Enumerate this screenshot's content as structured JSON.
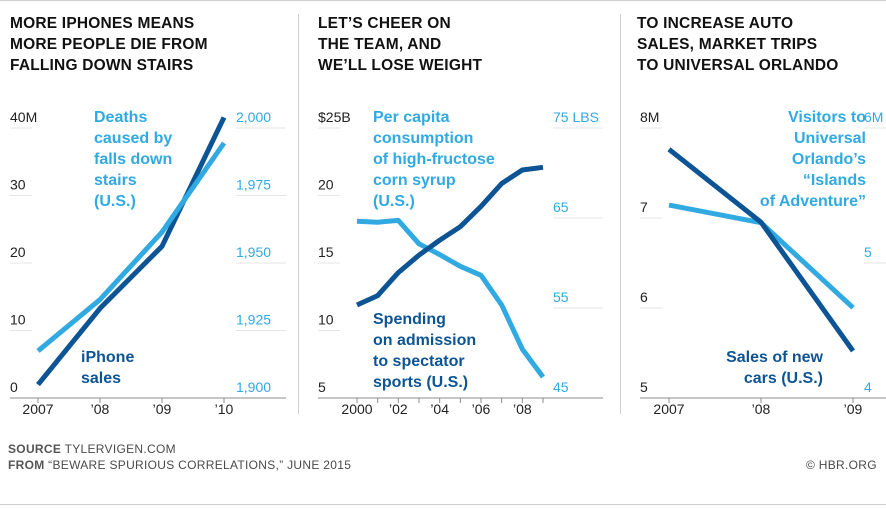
{
  "colors": {
    "dark": "#0d5495",
    "light": "#31a9e1",
    "axis": "#8c8c8c",
    "grid": "#e4e4e4",
    "text": "#1a1a1a"
  },
  "footer": {
    "source_label": "SOURCE",
    "source_value": "TYLERVIGEN.COM",
    "from_label": "FROM",
    "from_value": "“BEWARE SPURIOUS CORRELATIONS,” JUNE 2015",
    "copyright": "© HBR.ORG"
  },
  "chart_data": [
    {
      "type": "line",
      "title": "MORE IPHONES MEANS\nMORE PEOPLE DIE FROM\nFALLING DOWN STAIRS",
      "x_labels": [
        "2007",
        "’08",
        "’09",
        "’10"
      ],
      "x_range": [
        2007,
        2010
      ],
      "left_axis": {
        "ticks": [
          "40M",
          "30",
          "20",
          "10",
          "0"
        ],
        "values": [
          40,
          30,
          20,
          10,
          0
        ],
        "range": [
          0,
          40
        ]
      },
      "right_axis": {
        "ticks": [
          "2,000",
          "1,975",
          "1,950",
          "1,925",
          "1,900"
        ],
        "values": [
          2000,
          1975,
          1950,
          1925,
          1900
        ],
        "range": [
          1900,
          2000
        ]
      },
      "series": [
        {
          "name": "iPhone\nsales",
          "color": "dark",
          "axis": "left",
          "label_anchor": "start",
          "x": [
            2007,
            2008,
            2009,
            2010
          ],
          "values": [
            0.2,
            11.5,
            20.7,
            39.8
          ]
        },
        {
          "name": "Deaths\ncaused by\nfalls down\nstairs\n(U.S.)",
          "color": "light",
          "axis": "right",
          "label_anchor": "start",
          "x": [
            2007,
            2008,
            2009,
            2010
          ],
          "values": [
            1913,
            1932,
            1957,
            1990
          ]
        }
      ]
    },
    {
      "type": "line",
      "title": "LET’S CHEER ON\nTHE TEAM, AND\nWE’LL LOSE WEIGHT",
      "x_labels": [
        "2000",
        "",
        "’02",
        "",
        "’04",
        "",
        "’06",
        "",
        "’08",
        ""
      ],
      "x_range": [
        2000,
        2009
      ],
      "left_axis": {
        "ticks": [
          "$25B",
          "20",
          "15",
          "10",
          "5"
        ],
        "values": [
          25,
          20,
          15,
          10,
          5
        ],
        "range": [
          5,
          25
        ]
      },
      "right_axis": {
        "ticks": [
          "75 LBS",
          "65",
          "55",
          "45"
        ],
        "values": [
          75,
          65,
          55,
          45
        ],
        "range": [
          45,
          75
        ]
      },
      "series": [
        {
          "name": "Per capita\nconsumption\nof high-fructose\ncorn syrup\n(U.S.)",
          "color": "light",
          "axis": "right",
          "label_anchor": "start",
          "x": [
            2000,
            2001,
            2002,
            2003,
            2004,
            2005,
            2006,
            2007,
            2008,
            2009
          ],
          "values": [
            63.3,
            63.2,
            63.4,
            60.8,
            59.6,
            58.3,
            57.3,
            54.0,
            49.1,
            46.0
          ]
        },
        {
          "name": "Spending\non admission\nto spectator\nsports (U.S.)",
          "color": "dark",
          "axis": "left",
          "label_anchor": "start",
          "x": [
            2000,
            2001,
            2002,
            2003,
            2004,
            2005,
            2006,
            2007,
            2008,
            2009
          ],
          "values": [
            11.0,
            11.7,
            13.4,
            14.7,
            15.8,
            16.8,
            18.3,
            20.0,
            21.0,
            21.2
          ]
        }
      ]
    },
    {
      "type": "line",
      "title": "TO INCREASE AUTO\nSALES, MARKET TRIPS\nTO UNIVERSAL ORLANDO",
      "x_labels": [
        "2007",
        "’08",
        "’09"
      ],
      "x_range": [
        2007,
        2009
      ],
      "left_axis": {
        "ticks": [
          "8M",
          "7",
          "6",
          "5"
        ],
        "values": [
          8,
          7,
          6,
          5
        ],
        "range": [
          5,
          8
        ]
      },
      "right_axis": {
        "ticks": [
          "6M",
          "5",
          "4"
        ],
        "values": [
          6,
          5,
          4
        ],
        "range": [
          4,
          6
        ]
      },
      "series": [
        {
          "name": "Visitors to\nUniversal\nOrlando’s\n“Islands\nof Adventure”",
          "color": "light",
          "axis": "right",
          "label_anchor": "end",
          "x": [
            2007,
            2008,
            2009
          ],
          "values": [
            5.34,
            5.21,
            4.58
          ]
        },
        {
          "name": "Sales of new\ncars (U.S.)",
          "color": "dark",
          "axis": "left",
          "label_anchor": "end",
          "x": [
            2007,
            2008,
            2009
          ],
          "values": [
            7.63,
            6.82,
            5.39
          ]
        }
      ]
    }
  ]
}
